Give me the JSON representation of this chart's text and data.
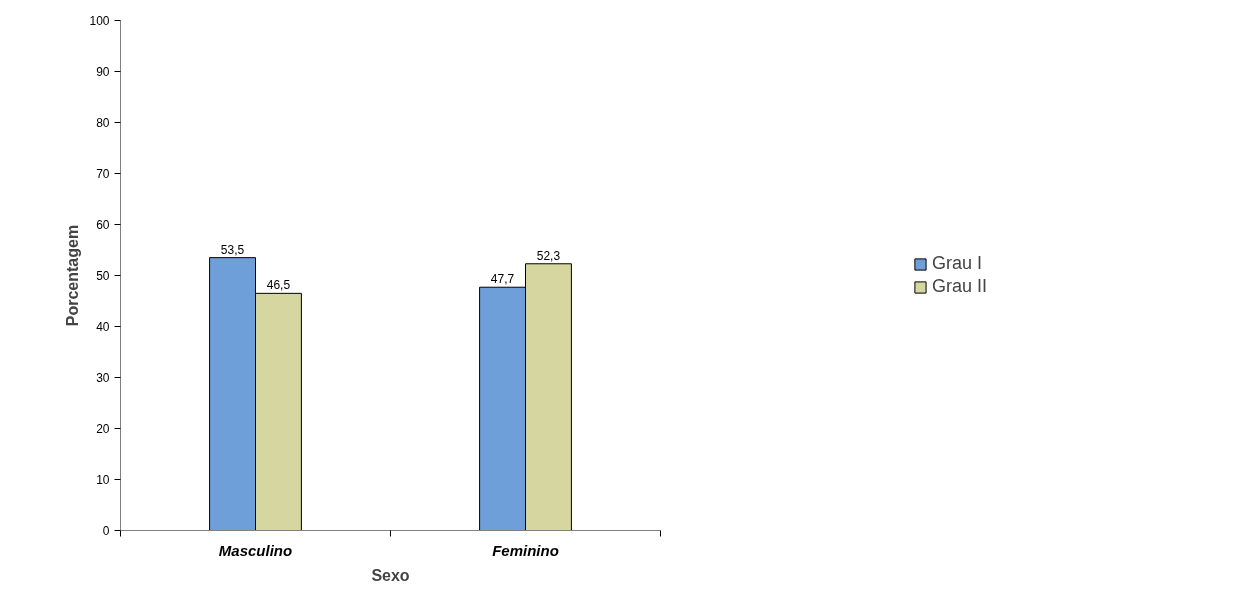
{
  "chart_data": {
    "type": "bar",
    "xlabel": "Sexo",
    "ylabel": "Porcentagem",
    "categories": [
      "Masculino",
      "Feminino"
    ],
    "series": [
      {
        "name": "Grau I",
        "color": "#6f9fd8",
        "values": [
          53.5,
          47.7
        ],
        "value_labels": [
          "53,5",
          "47,7"
        ]
      },
      {
        "name": "Grau II",
        "color": "#d6d6a0",
        "values": [
          46.5,
          52.3
        ],
        "value_labels": [
          "46,5",
          "52,3"
        ]
      }
    ],
    "ylim": [
      0,
      100
    ],
    "yticks": [
      0,
      10,
      20,
      30,
      40,
      50,
      60,
      70,
      80,
      90,
      100
    ],
    "grid": false,
    "legend": "right"
  }
}
